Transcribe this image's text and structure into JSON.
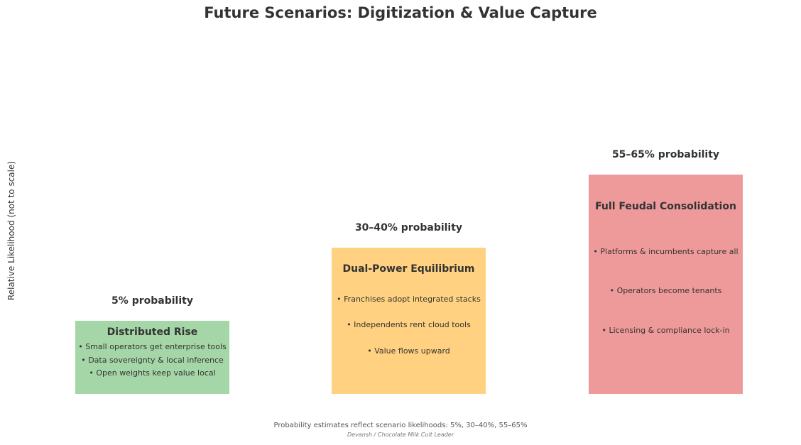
{
  "chart_data": {
    "type": "bar",
    "title": "Future Scenarios: Digitization & Value Capture",
    "ylabel": "Relative Likelihood (not to scale)",
    "xlabel": "",
    "categories": [
      "Distributed Rise",
      "Dual-Power Equilibrium",
      "Full Feudal Consolidation"
    ],
    "values": [
      1,
      2,
      3
    ],
    "ylim": [
      0,
      6
    ],
    "probability_labels": [
      "5% probability",
      "30–40% probability",
      "55–65% probability"
    ],
    "colors": [
      "#a5d6a7",
      "#ffd180",
      "#ef9a9a"
    ],
    "bullets": [
      [
        "• Small operators get enterprise tools",
        "• Data sovereignty & local inference",
        "• Open weights keep value local"
      ],
      [
        "• Franchises adopt integrated stacks",
        "• Independents rent cloud tools",
        "• Value flows upward"
      ],
      [
        "• Platforms & incumbents capture all",
        "• Operators become tenants",
        "• Licensing & compliance lock-in"
      ]
    ],
    "footnote": "Probability estimates reflect scenario likelihoods: 5%, 30–40%, 55–65%",
    "credit": "Devansh / Chocolate Milk Cult Leader"
  }
}
